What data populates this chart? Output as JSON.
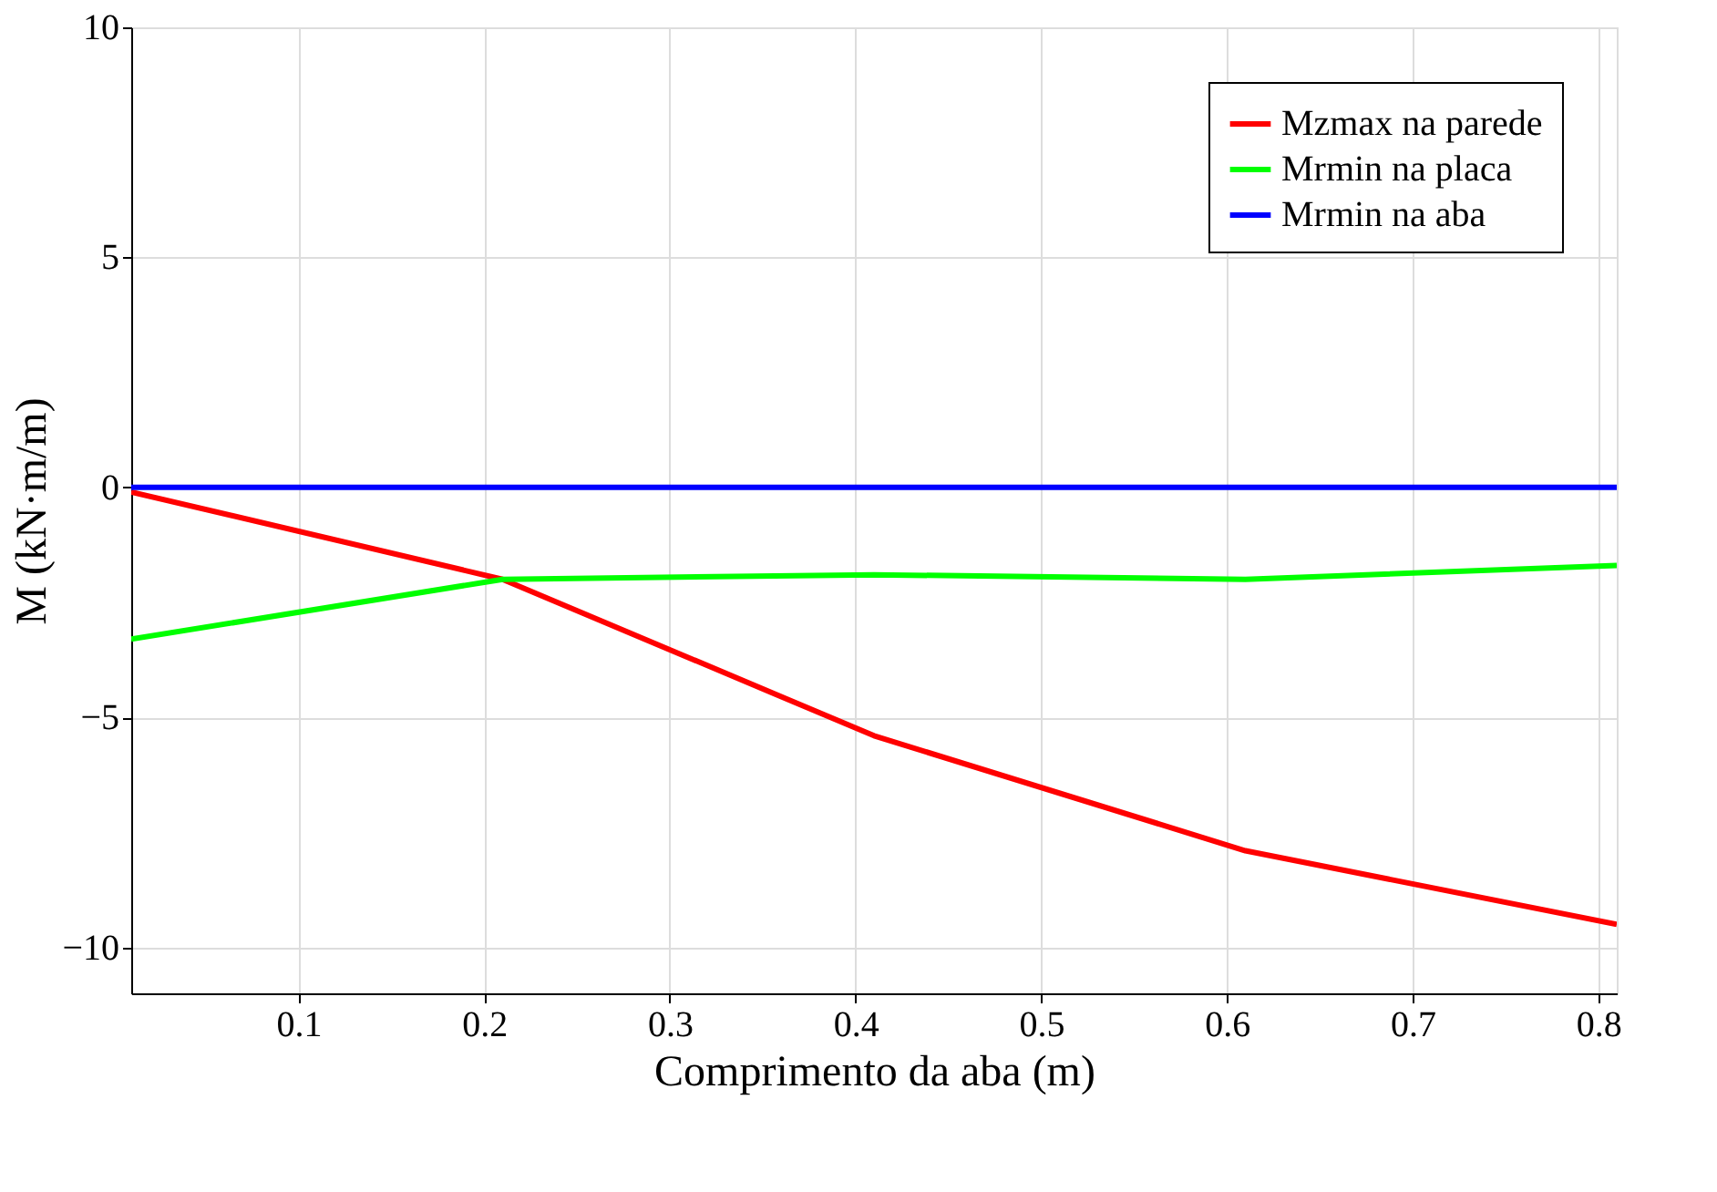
{
  "chart_data": {
    "type": "line",
    "xlabel": "Comprimento da aba (m)",
    "ylabel": "M (kN·m/m)",
    "x": [
      0.01,
      0.21,
      0.41,
      0.61,
      0.81
    ],
    "series": [
      {
        "name": "Mzmax na parede",
        "color": "#ff0000",
        "values": [
          -0.1,
          -2.0,
          -5.4,
          -7.9,
          -9.5
        ]
      },
      {
        "name": "Mrmin na placa",
        "color": "#00ff00",
        "values": [
          -3.3,
          -2.0,
          -1.9,
          -2.0,
          -1.7
        ]
      },
      {
        "name": "Mrmin na aba",
        "color": "#0000ff",
        "values": [
          0,
          0,
          0,
          0,
          0
        ]
      }
    ],
    "xlim": [
      0.01,
      0.81
    ],
    "xticks": [
      0.1,
      0.2,
      0.3,
      0.4,
      0.5,
      0.6,
      0.7,
      0.8
    ],
    "ylim": [
      -11,
      10
    ],
    "yticks": [
      -10,
      -5,
      0,
      5,
      10
    ],
    "grid": true,
    "legend": "top right"
  }
}
